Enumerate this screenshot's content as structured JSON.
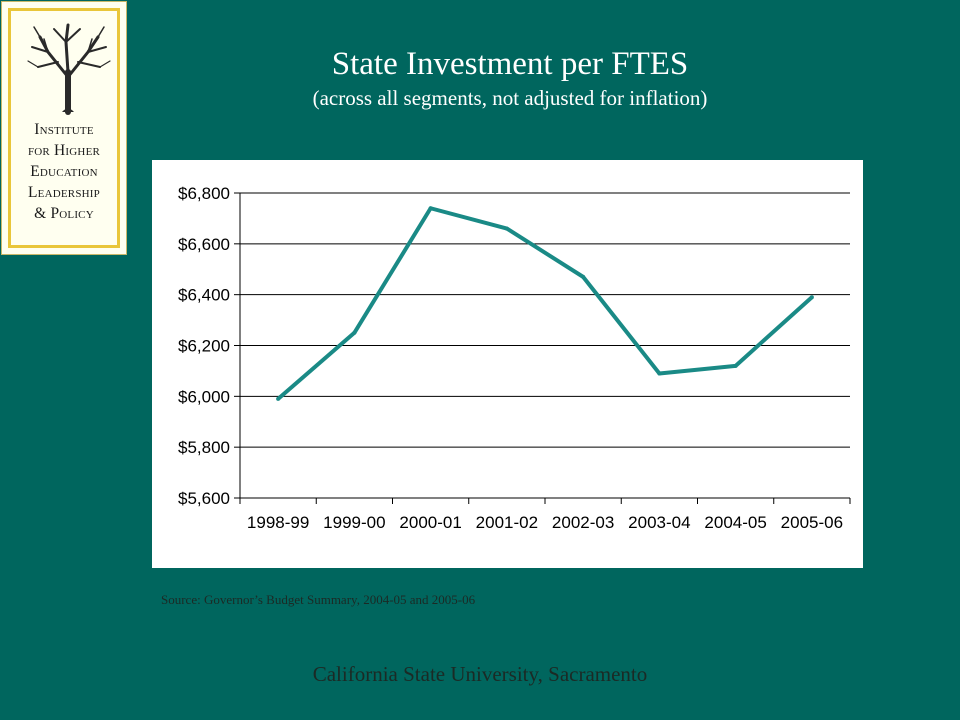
{
  "logo": {
    "lines": [
      "Institute",
      "for Higher",
      "Education",
      "Leadership",
      "& Policy"
    ],
    "tree_icon": "tree-icon"
  },
  "title": "State Investment per FTES",
  "subtitle": "(across all segments, not adjusted for inflation)",
  "chart_data": {
    "type": "line",
    "title": "",
    "xlabel": "",
    "ylabel": "",
    "categories": [
      "1998-99",
      "1999-00",
      "2000-01",
      "2001-02",
      "2002-03",
      "2003-04",
      "2004-05",
      "2005-06"
    ],
    "series": [
      {
        "values": [
          5990,
          6250,
          6740,
          6660,
          6470,
          6090,
          6120,
          6390
        ],
        "color": "#1a8a86"
      }
    ],
    "ylim": [
      5600,
      6800
    ],
    "yticks": [
      5600,
      5800,
      6000,
      6200,
      6400,
      6600,
      6800
    ],
    "ytick_labels": [
      "$5,600",
      "$5,800",
      "$6,000",
      "$6,200",
      "$6,400",
      "$6,600",
      "$6,800"
    ],
    "grid": true,
    "legend": "none"
  },
  "source": "Source: Governor’s Budget Summary, 2004-05 and 2005-06",
  "footer": "California State University, Sacramento",
  "colors": {
    "background": "#00665e",
    "line": "#1a8a86",
    "logo_border": "#e9c63a"
  }
}
